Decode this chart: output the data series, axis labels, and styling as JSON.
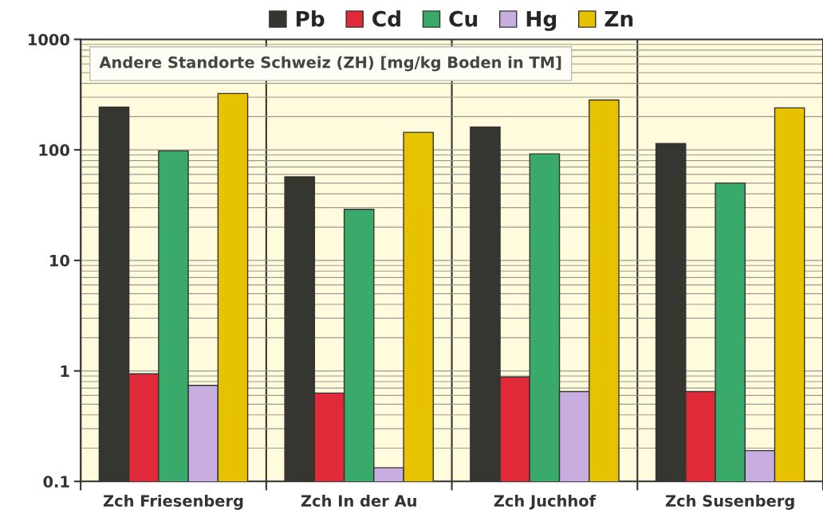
{
  "chart_data": {
    "type": "bar",
    "title": "Andere Standorte Schweiz (ZH) [mg/kg Boden in TM]",
    "categories": [
      "Zch Friesenberg",
      "Zch In der Au",
      "Zch Juchhof",
      "Zch Susenberg"
    ],
    "series": [
      {
        "name": "Pb",
        "color": "#363630",
        "values": [
          244,
          57,
          161,
          114
        ]
      },
      {
        "name": "Cd",
        "color": "#e02a3a",
        "values": [
          0.94,
          0.63,
          0.88,
          0.65
        ]
      },
      {
        "name": "Cu",
        "color": "#3aaa6a",
        "values": [
          98,
          29,
          92,
          50
        ]
      },
      {
        "name": "Hg",
        "color": "#c8aee0",
        "values": [
          0.74,
          0.133,
          0.65,
          0.19
        ]
      },
      {
        "name": "Zn",
        "color": "#e6c200",
        "values": [
          324,
          144,
          283,
          240
        ]
      }
    ],
    "log": true,
    "ylim": [
      0.1,
      1000
    ],
    "yticks": [
      0.1,
      1,
      10,
      100,
      1000
    ],
    "grid": true,
    "legend": "top"
  }
}
